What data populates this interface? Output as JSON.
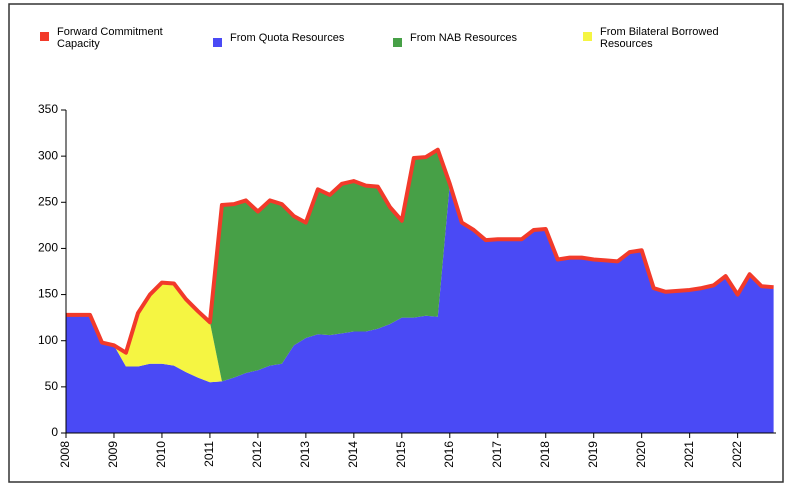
{
  "chart_data": {
    "type": "area",
    "x": [
      2008,
      2008.25,
      2008.5,
      2008.75,
      2009,
      2009.25,
      2009.5,
      2009.75,
      2010,
      2010.25,
      2010.5,
      2010.75,
      2011,
      2011.25,
      2011.5,
      2011.75,
      2012,
      2012.25,
      2012.5,
      2012.75,
      2013,
      2013.25,
      2013.5,
      2013.75,
      2014,
      2014.25,
      2014.5,
      2014.75,
      2015,
      2015.25,
      2015.5,
      2015.75,
      2016,
      2016.25,
      2016.5,
      2016.75,
      2017,
      2017.25,
      2017.5,
      2017.75,
      2018,
      2018.25,
      2018.5,
      2018.75,
      2019,
      2019.25,
      2019.5,
      2019.75,
      2020,
      2020.25,
      2020.5,
      2020.75,
      2021,
      2021.25,
      2021.5,
      2021.75,
      2022,
      2022.25,
      2022.5,
      2022.75
    ],
    "series": [
      {
        "name": "Forward Commitment Capacity",
        "color": "#f23a2a",
        "type": "line",
        "values": [
          128,
          128,
          128,
          98,
          95,
          87,
          130,
          150,
          163,
          162,
          145,
          132,
          120,
          247,
          248,
          252,
          240,
          252,
          248,
          235,
          228,
          264,
          258,
          270,
          273,
          268,
          267,
          245,
          230,
          298,
          299,
          307,
          270,
          228,
          220,
          209,
          210,
          210,
          210,
          220,
          221,
          188,
          190,
          190,
          188,
          187,
          186,
          196,
          198,
          157,
          153,
          154,
          155,
          157,
          160,
          170,
          150,
          172,
          159,
          158
        ]
      },
      {
        "name": "From Quota Resources",
        "color": "#4a4af5",
        "type": "area",
        "values": [
          128,
          128,
          128,
          98,
          95,
          72,
          72,
          75,
          75,
          73,
          66,
          60,
          55,
          56,
          60,
          65,
          68,
          73,
          75,
          95,
          103,
          107,
          106,
          108,
          110,
          110,
          113,
          118,
          125,
          125,
          127,
          126,
          270,
          228,
          220,
          209,
          210,
          210,
          210,
          220,
          221,
          188,
          190,
          190,
          188,
          187,
          186,
          196,
          198,
          157,
          153,
          154,
          155,
          157,
          160,
          170,
          150,
          172,
          159,
          158
        ]
      },
      {
        "name": "From Bilateral Borrowed Resources",
        "color": "#f5f542",
        "type": "area",
        "values": [
          0,
          0,
          0,
          0,
          0,
          15,
          58,
          75,
          88,
          89,
          79,
          72,
          65,
          0,
          0,
          0,
          0,
          0,
          0,
          0,
          0,
          0,
          0,
          0,
          0,
          0,
          0,
          0,
          0,
          0,
          0,
          0,
          0,
          0,
          0,
          0,
          0,
          0,
          0,
          0,
          0,
          0,
          0,
          0,
          0,
          0,
          0,
          0,
          0,
          0,
          0,
          0,
          0,
          0,
          0,
          0,
          0,
          0,
          0,
          0
        ]
      },
      {
        "name": "From NAB Resources",
        "color": "#47a047",
        "type": "area",
        "values": [
          0,
          0,
          0,
          0,
          0,
          0,
          0,
          0,
          0,
          0,
          0,
          0,
          0,
          191,
          188,
          187,
          172,
          179,
          173,
          140,
          125,
          157,
          152,
          162,
          163,
          158,
          154,
          127,
          105,
          173,
          172,
          181,
          0,
          0,
          0,
          0,
          0,
          0,
          0,
          0,
          0,
          0,
          0,
          0,
          0,
          0,
          0,
          0,
          0,
          0,
          0,
          0,
          0,
          0,
          0,
          0,
          0,
          0,
          0,
          0
        ]
      }
    ],
    "legend_order": [
      0,
      1,
      3,
      2
    ],
    "xlim": [
      2008,
      2022.8
    ],
    "xticks": [
      2008,
      2009,
      2010,
      2011,
      2012,
      2013,
      2014,
      2015,
      2016,
      2017,
      2018,
      2019,
      2020,
      2021,
      2022
    ],
    "ylim": [
      0,
      350
    ],
    "yticks": [
      0,
      50,
      100,
      150,
      200,
      250,
      300,
      350
    ]
  }
}
